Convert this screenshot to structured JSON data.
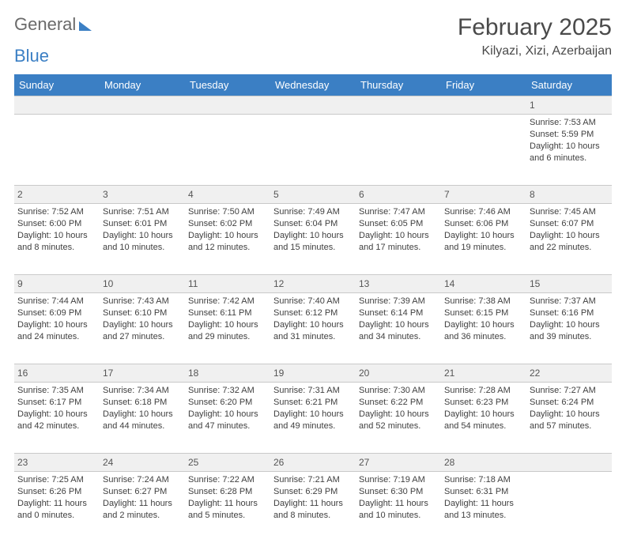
{
  "brand": {
    "word1": "General",
    "word2": "Blue"
  },
  "title": "February 2025",
  "location": "Kilyazi, Xizi, Azerbaijan",
  "colors": {
    "header_bg": "#3b7fc4",
    "header_text": "#ffffff",
    "daynum_bg": "#f0f0f0",
    "border": "#c9c9c9",
    "text": "#404040",
    "logo_gray": "#6a6a6a",
    "logo_blue": "#3b7fc4"
  },
  "day_names": [
    "Sunday",
    "Monday",
    "Tuesday",
    "Wednesday",
    "Thursday",
    "Friday",
    "Saturday"
  ],
  "weeks": [
    [
      null,
      null,
      null,
      null,
      null,
      null,
      {
        "n": "1",
        "sunrise": "7:53 AM",
        "sunset": "5:59 PM",
        "dh": "10",
        "dm": "6"
      }
    ],
    [
      {
        "n": "2",
        "sunrise": "7:52 AM",
        "sunset": "6:00 PM",
        "dh": "10",
        "dm": "8"
      },
      {
        "n": "3",
        "sunrise": "7:51 AM",
        "sunset": "6:01 PM",
        "dh": "10",
        "dm": "10"
      },
      {
        "n": "4",
        "sunrise": "7:50 AM",
        "sunset": "6:02 PM",
        "dh": "10",
        "dm": "12"
      },
      {
        "n": "5",
        "sunrise": "7:49 AM",
        "sunset": "6:04 PM",
        "dh": "10",
        "dm": "15"
      },
      {
        "n": "6",
        "sunrise": "7:47 AM",
        "sunset": "6:05 PM",
        "dh": "10",
        "dm": "17"
      },
      {
        "n": "7",
        "sunrise": "7:46 AM",
        "sunset": "6:06 PM",
        "dh": "10",
        "dm": "19"
      },
      {
        "n": "8",
        "sunrise": "7:45 AM",
        "sunset": "6:07 PM",
        "dh": "10",
        "dm": "22"
      }
    ],
    [
      {
        "n": "9",
        "sunrise": "7:44 AM",
        "sunset": "6:09 PM",
        "dh": "10",
        "dm": "24"
      },
      {
        "n": "10",
        "sunrise": "7:43 AM",
        "sunset": "6:10 PM",
        "dh": "10",
        "dm": "27"
      },
      {
        "n": "11",
        "sunrise": "7:42 AM",
        "sunset": "6:11 PM",
        "dh": "10",
        "dm": "29"
      },
      {
        "n": "12",
        "sunrise": "7:40 AM",
        "sunset": "6:12 PM",
        "dh": "10",
        "dm": "31"
      },
      {
        "n": "13",
        "sunrise": "7:39 AM",
        "sunset": "6:14 PM",
        "dh": "10",
        "dm": "34"
      },
      {
        "n": "14",
        "sunrise": "7:38 AM",
        "sunset": "6:15 PM",
        "dh": "10",
        "dm": "36"
      },
      {
        "n": "15",
        "sunrise": "7:37 AM",
        "sunset": "6:16 PM",
        "dh": "10",
        "dm": "39"
      }
    ],
    [
      {
        "n": "16",
        "sunrise": "7:35 AM",
        "sunset": "6:17 PM",
        "dh": "10",
        "dm": "42"
      },
      {
        "n": "17",
        "sunrise": "7:34 AM",
        "sunset": "6:18 PM",
        "dh": "10",
        "dm": "44"
      },
      {
        "n": "18",
        "sunrise": "7:32 AM",
        "sunset": "6:20 PM",
        "dh": "10",
        "dm": "47"
      },
      {
        "n": "19",
        "sunrise": "7:31 AM",
        "sunset": "6:21 PM",
        "dh": "10",
        "dm": "49"
      },
      {
        "n": "20",
        "sunrise": "7:30 AM",
        "sunset": "6:22 PM",
        "dh": "10",
        "dm": "52"
      },
      {
        "n": "21",
        "sunrise": "7:28 AM",
        "sunset": "6:23 PM",
        "dh": "10",
        "dm": "54"
      },
      {
        "n": "22",
        "sunrise": "7:27 AM",
        "sunset": "6:24 PM",
        "dh": "10",
        "dm": "57"
      }
    ],
    [
      {
        "n": "23",
        "sunrise": "7:25 AM",
        "sunset": "6:26 PM",
        "dh": "11",
        "dm": "0"
      },
      {
        "n": "24",
        "sunrise": "7:24 AM",
        "sunset": "6:27 PM",
        "dh": "11",
        "dm": "2"
      },
      {
        "n": "25",
        "sunrise": "7:22 AM",
        "sunset": "6:28 PM",
        "dh": "11",
        "dm": "5"
      },
      {
        "n": "26",
        "sunrise": "7:21 AM",
        "sunset": "6:29 PM",
        "dh": "11",
        "dm": "8"
      },
      {
        "n": "27",
        "sunrise": "7:19 AM",
        "sunset": "6:30 PM",
        "dh": "11",
        "dm": "10"
      },
      {
        "n": "28",
        "sunrise": "7:18 AM",
        "sunset": "6:31 PM",
        "dh": "11",
        "dm": "13"
      },
      null
    ]
  ]
}
